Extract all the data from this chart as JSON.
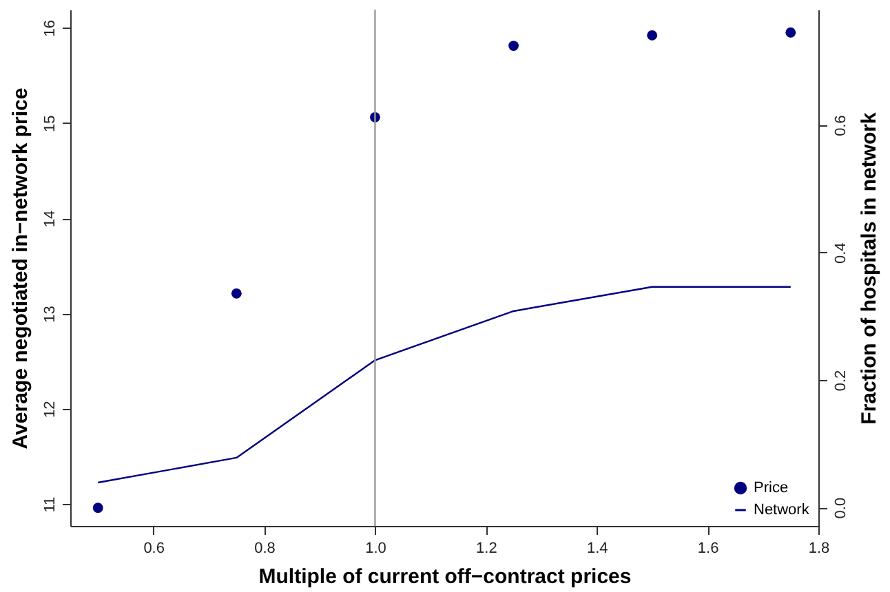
{
  "chart_data": {
    "type": "scatter",
    "xlabel": "Multiple of current off−contract prices",
    "ylabel": "Average negotiated in−network price",
    "y2label": "Fraction of hospitals in network",
    "x": [
      0.5,
      0.75,
      1.0,
      1.25,
      1.5,
      1.75
    ],
    "series": [
      {
        "name": "Price",
        "marker": "circle",
        "color": "#000080",
        "values": [
          10.96,
          13.21,
          15.06,
          15.81,
          15.92,
          15.95
        ]
      },
      {
        "name": "Network",
        "type": "line",
        "axis": "y2",
        "color": "#000080",
        "values": [
          0.039,
          0.078,
          0.231,
          0.308,
          0.346,
          0.346
        ]
      }
    ],
    "xlim": [
      0.45,
      1.8
    ],
    "xticks": [
      {
        "value": 0.6,
        "label": "0.6"
      },
      {
        "value": 0.8,
        "label": "0.8"
      },
      {
        "value": 1.0,
        "label": "1.0"
      },
      {
        "value": 1.2,
        "label": "1.2"
      },
      {
        "value": 1.4,
        "label": "1.4"
      },
      {
        "value": 1.6,
        "label": "1.6"
      },
      {
        "value": 1.8,
        "label": "1.8"
      }
    ],
    "ylim": [
      10.77,
      16.19
    ],
    "yticks": [
      11,
      12,
      13,
      14,
      15,
      16
    ],
    "y2lim": [
      -0.029,
      0.781
    ],
    "y2ticks": [
      {
        "value": 0,
        "label": "0.0"
      },
      {
        "value": 0.2,
        "label": "0.2"
      },
      {
        "value": 0.4,
        "label": "0.4"
      },
      {
        "value": 0.6,
        "label": "0.6"
      }
    ],
    "ref_lines": [
      {
        "axis": "x",
        "value": 1.0,
        "color": "#999999"
      }
    ],
    "legend": "bottom right",
    "grid": false
  }
}
